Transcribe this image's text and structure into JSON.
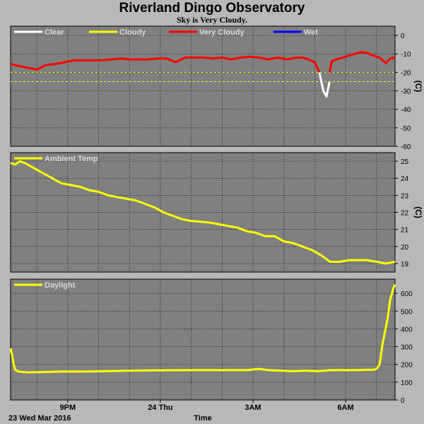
{
  "title": "Riverland Dingo Observatory",
  "subtitle": "Sky is Very Cloudy.",
  "x_axis": {
    "label": "Time",
    "date_label": "23 Wed Mar 2016",
    "ticks": [
      {
        "hour": 21,
        "label": "9PM"
      },
      {
        "hour": 24,
        "label": "24 Thu"
      },
      {
        "hour": 27,
        "label": "3AM"
      },
      {
        "hour": 30,
        "label": "6AM"
      }
    ],
    "range_hours": [
      19.15,
      31.6
    ]
  },
  "colors": {
    "clear": "#ffffff",
    "cloudy": "#ffff00",
    "very_cloudy": "#ff0000",
    "wet": "#0000ff",
    "plot_bg": "#808080",
    "page_bg": "#b8b8b8",
    "grid": "#000000"
  },
  "chart_data": [
    {
      "type": "line",
      "id": "sky",
      "unit": "(C)",
      "ylim": [
        -60,
        5
      ],
      "yticks": [
        0,
        -10,
        -20,
        -30,
        -40,
        -50,
        -60
      ],
      "grid": true,
      "legend_placement": "top-left",
      "legend": [
        {
          "name": "Clear",
          "color": "#ffffff"
        },
        {
          "name": "Cloudy",
          "color": "#ffff00"
        },
        {
          "name": "Very Cloudy",
          "color": "#ff0000"
        },
        {
          "name": "Wet",
          "color": "#0000ff"
        }
      ],
      "thresholds": [
        -20,
        -25
      ],
      "series": [
        {
          "name": "Very Cloudy",
          "color": "#ff0000",
          "x": [
            19.15,
            19.4,
            19.7,
            20.0,
            20.3,
            20.6,
            20.9,
            21.2,
            21.5,
            21.8,
            22.1,
            22.4,
            22.7,
            23.0,
            23.3,
            23.6,
            23.9,
            24.2,
            24.5,
            24.8,
            25.1,
            25.4,
            25.7,
            26.0,
            26.3,
            26.6,
            26.9,
            27.2,
            27.5,
            27.8,
            28.1,
            28.4,
            28.6,
            28.8,
            29.0,
            29.15
          ],
          "y": [
            -15.5,
            -16.5,
            -17.5,
            -18.5,
            -16,
            -15.5,
            -14.5,
            -13.5,
            -13.5,
            -13.5,
            -13.5,
            -13,
            -12.5,
            -13,
            -13,
            -13,
            -12.5,
            -12.5,
            -14.5,
            -12,
            -12,
            -12,
            -12.5,
            -12,
            -13,
            -12,
            -11.5,
            -12,
            -13,
            -12,
            -13,
            -12,
            -12,
            -13,
            -14.5,
            -20
          ]
        },
        {
          "name": "Clear",
          "color": "#ffffff",
          "x": [
            29.15,
            29.28,
            29.38,
            29.48
          ],
          "y": [
            -20,
            -30,
            -33,
            -25
          ]
        },
        {
          "name": "Very Cloudy",
          "color": "#ff0000",
          "x": [
            29.48,
            29.55,
            29.7,
            29.9,
            30.1,
            30.3,
            30.5,
            30.7,
            30.9,
            31.1,
            31.3,
            31.45,
            31.6
          ],
          "y": [
            -20,
            -14,
            -13,
            -12,
            -11,
            -10,
            -9,
            -9.5,
            -11,
            -12,
            -15,
            -12.5,
            -12
          ]
        }
      ]
    },
    {
      "type": "line",
      "id": "ambient",
      "unit": "(C)",
      "ylim": [
        18.5,
        25.5
      ],
      "yticks": [
        19,
        20,
        21,
        22,
        23,
        24,
        25
      ],
      "grid": true,
      "legend_placement": "top-left",
      "legend": [
        {
          "name": "Ambient Temp",
          "color": "#ffff00"
        }
      ],
      "series": [
        {
          "name": "Ambient Temp",
          "color": "#ffff00",
          "x": [
            19.15,
            19.3,
            19.45,
            19.6,
            19.9,
            20.2,
            20.5,
            20.8,
            21.1,
            21.4,
            21.7,
            22.0,
            22.3,
            22.6,
            22.9,
            23.2,
            23.5,
            23.8,
            24.1,
            24.4,
            24.7,
            25.0,
            25.3,
            25.6,
            25.9,
            26.2,
            26.5,
            26.8,
            27.1,
            27.4,
            27.7,
            28.0,
            28.3,
            28.6,
            28.9,
            29.2,
            29.5,
            29.8,
            30.1,
            30.4,
            30.7,
            31.0,
            31.3,
            31.6
          ],
          "y": [
            24.9,
            24.8,
            25.0,
            24.9,
            24.6,
            24.3,
            24.0,
            23.7,
            23.6,
            23.5,
            23.3,
            23.2,
            23.0,
            22.9,
            22.8,
            22.7,
            22.5,
            22.3,
            22.0,
            21.8,
            21.6,
            21.5,
            21.45,
            21.4,
            21.3,
            21.2,
            21.1,
            20.9,
            20.8,
            20.6,
            20.6,
            20.3,
            20.2,
            20.0,
            19.8,
            19.5,
            19.1,
            19.1,
            19.2,
            19.2,
            19.2,
            19.1,
            19.0,
            19.1
          ]
        }
      ]
    },
    {
      "type": "line",
      "id": "daylight",
      "unit": "",
      "ylim": [
        0,
        680
      ],
      "yticks": [
        0,
        100,
        200,
        300,
        400,
        500,
        600
      ],
      "grid": true,
      "legend_placement": "top-left",
      "legend": [
        {
          "name": "Daylight",
          "color": "#ffff00"
        }
      ],
      "series": [
        {
          "name": "Daylight",
          "color": "#ffff00",
          "x": [
            19.15,
            19.2,
            19.25,
            19.3,
            19.4,
            19.7,
            20.2,
            20.8,
            21.5,
            22.2,
            23.0,
            24.0,
            25.0,
            26.0,
            26.8,
            27.2,
            27.5,
            27.9,
            28.3,
            28.7,
            29.1,
            29.5,
            29.9,
            30.3,
            30.7,
            30.9,
            31.0,
            31.1,
            31.2,
            31.35,
            31.45,
            31.55,
            31.6
          ],
          "y": [
            290,
            250,
            200,
            170,
            160,
            155,
            157,
            160,
            160,
            162,
            165,
            167,
            168,
            168,
            168,
            175,
            168,
            165,
            162,
            165,
            162,
            168,
            168,
            168,
            170,
            170,
            175,
            200,
            320,
            450,
            570,
            630,
            650
          ]
        }
      ]
    }
  ]
}
